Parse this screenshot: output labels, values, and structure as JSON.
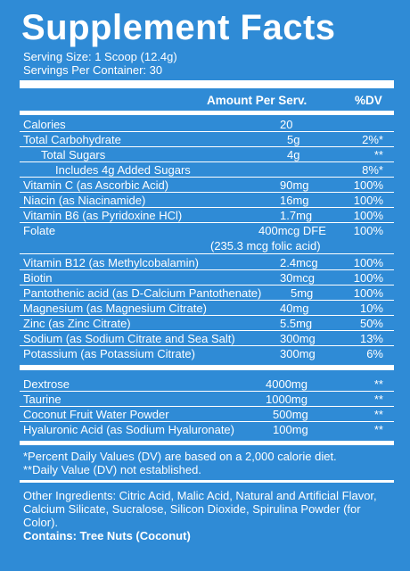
{
  "title": "Supplement Facts",
  "serving_size": "Serving Size: 1 Scoop (12.4g)",
  "servings_per_container": "Servings Per Container: 30",
  "header": {
    "amount": "Amount Per Serv.",
    "dv": "%DV"
  },
  "rows": [
    {
      "name": "Calories",
      "amount": "20",
      "dv": ""
    },
    {
      "name": "Total Carbohydrate",
      "amount": "5g",
      "dv": "2%*"
    },
    {
      "name": "Total Sugars",
      "amount": "4g",
      "dv": "**"
    },
    {
      "name": "Includes 4g Added Sugars",
      "amount": "",
      "dv": "8%*"
    },
    {
      "name": "Vitamin C (as Ascorbic Acid)",
      "amount": "90mg",
      "dv": "100%"
    },
    {
      "name": "Niacin (as Niacinamide)",
      "amount": "16mg",
      "dv": "100%"
    },
    {
      "name": "Vitamin B6 (as Pyridoxine HCl)",
      "amount": "1.7mg",
      "dv": "100%"
    },
    {
      "name": "Folate",
      "amount": "400mcg DFE",
      "amount_sub": "(235.3 mcg folic acid)",
      "dv": "100%"
    },
    {
      "name": "Vitamin B12 (as Methylcobalamin)",
      "amount": "2.4mcg",
      "dv": "100%"
    },
    {
      "name": "Biotin",
      "amount": "30mcg",
      "dv": "100%"
    },
    {
      "name": "Pantothenic acid (as D-Calcium Pantothenate)",
      "amount": "5mg",
      "dv": "100%"
    },
    {
      "name": "Magnesium (as Magnesium Citrate)",
      "amount": "40mg",
      "dv": "10%"
    },
    {
      "name": "Zinc (as Zinc Citrate)",
      "amount": "5.5mg",
      "dv": "50%"
    },
    {
      "name": "Sodium (as Sodium Citrate and Sea Salt)",
      "amount": "300mg",
      "dv": "13%"
    },
    {
      "name": "Potassium (as Potassium Citrate)",
      "amount": "300mg",
      "dv": "6%"
    }
  ],
  "rows2": [
    {
      "name": "Dextrose",
      "amount": "4000mg",
      "dv": "**"
    },
    {
      "name": "Taurine",
      "amount": "1000mg",
      "dv": "**"
    },
    {
      "name": "Coconut Fruit Water Powder",
      "amount": "500mg",
      "dv": "**"
    },
    {
      "name": "Hyaluronic Acid (as Sodium Hyaluronate)",
      "amount": "100mg",
      "dv": "**"
    }
  ],
  "footnote1": "*Percent Daily Values (DV) are based on a 2,000 calorie diet.",
  "footnote2": "**Daily Value (DV) not established.",
  "other_ingredients": "Other Ingredients: Citric Acid, Malic Acid, Natural and Artificial Flavor, Calcium Silicate, Sucralose, Silicon Dioxide, Spirulina Powder (for Color).",
  "contains": "Contains: Tree Nuts (Coconut)"
}
